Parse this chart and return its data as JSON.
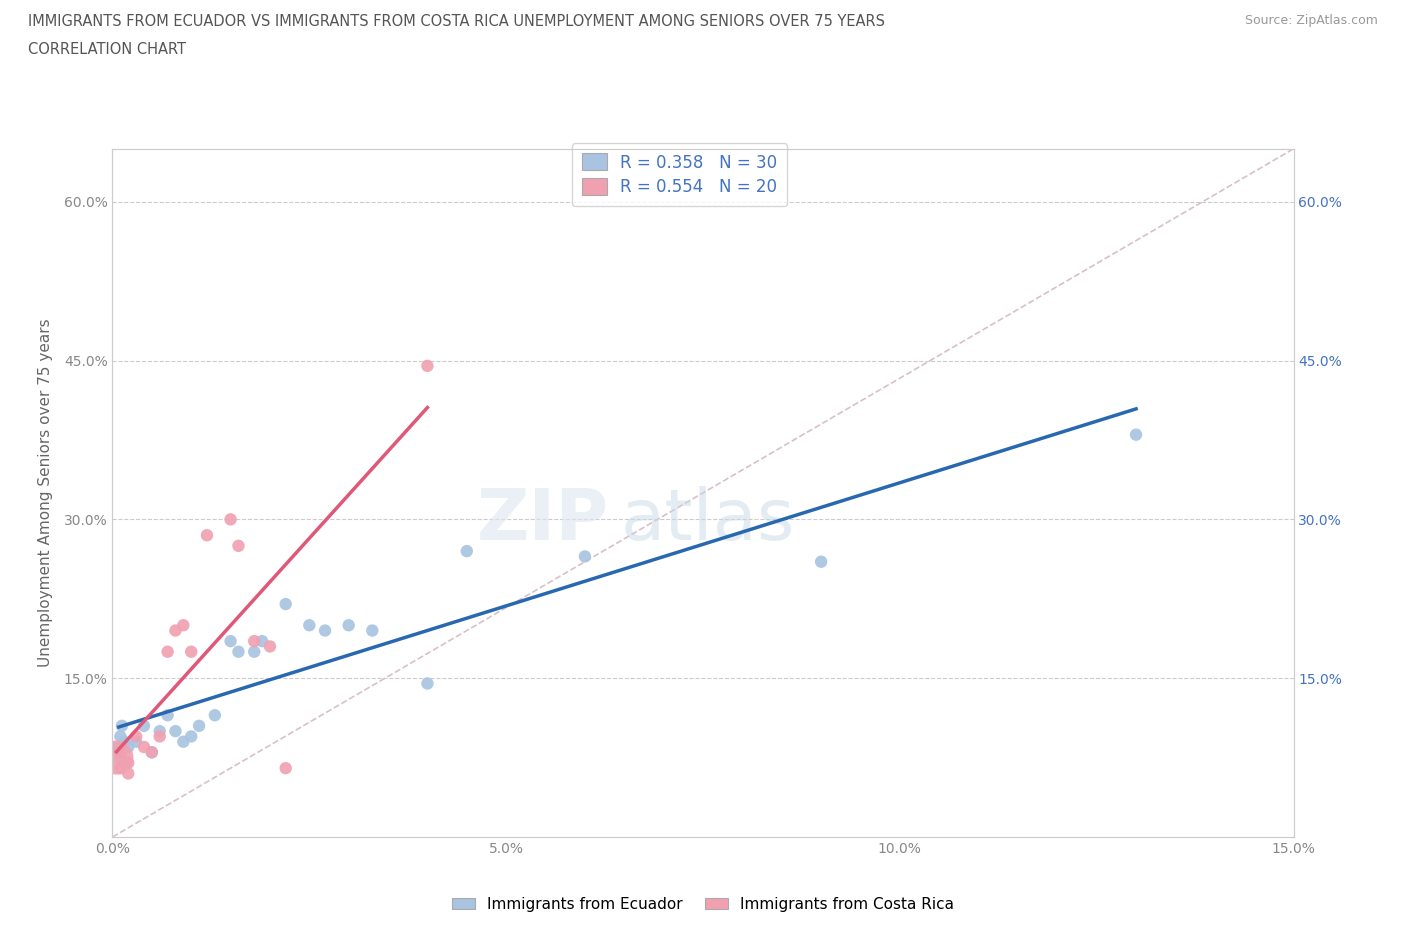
{
  "title_line1": "IMMIGRANTS FROM ECUADOR VS IMMIGRANTS FROM COSTA RICA UNEMPLOYMENT AMONG SENIORS OVER 75 YEARS",
  "title_line2": "CORRELATION CHART",
  "source": "Source: ZipAtlas.com",
  "ylabel": "Unemployment Among Seniors over 75 years",
  "xlim": [
    0,
    0.15
  ],
  "ylim": [
    0,
    0.65
  ],
  "x_ticks": [
    0.0,
    0.05,
    0.1,
    0.15
  ],
  "x_tick_labels": [
    "0.0%",
    "5.0%",
    "10.0%",
    "15.0%"
  ],
  "y_ticks": [
    0,
    0.15,
    0.3,
    0.45,
    0.6
  ],
  "y_tick_labels": [
    "",
    "15.0%",
    "30.0%",
    "45.0%",
    "60.0%"
  ],
  "ecuador_R": 0.358,
  "ecuador_N": 30,
  "costarica_R": 0.554,
  "costarica_N": 20,
  "ecuador_color": "#a8c4e0",
  "costarica_color": "#f0a0b0",
  "ecuador_line_color": "#2868b0",
  "costarica_line_color": "#e05878",
  "diagonal_color": "#d8c0c8",
  "background_color": "#ffffff",
  "title_color": "#555555",
  "axis_label_color": "#666666",
  "tick_color": "#888888",
  "ecuador_x": [
    0.0008,
    0.001,
    0.001,
    0.0012,
    0.0015,
    0.002,
    0.003,
    0.004,
    0.005,
    0.006,
    0.007,
    0.008,
    0.009,
    0.01,
    0.011,
    0.013,
    0.015,
    0.016,
    0.018,
    0.019,
    0.022,
    0.025,
    0.027,
    0.03,
    0.033,
    0.04,
    0.045,
    0.06,
    0.09,
    0.13
  ],
  "ecuador_y": [
    0.085,
    0.095,
    0.075,
    0.105,
    0.09,
    0.085,
    0.09,
    0.105,
    0.08,
    0.1,
    0.115,
    0.1,
    0.09,
    0.095,
    0.105,
    0.115,
    0.185,
    0.175,
    0.175,
    0.185,
    0.22,
    0.2,
    0.195,
    0.2,
    0.195,
    0.145,
    0.27,
    0.265,
    0.26,
    0.38
  ],
  "ecuador_sizes": [
    80,
    80,
    80,
    80,
    80,
    80,
    80,
    80,
    80,
    80,
    80,
    80,
    80,
    80,
    80,
    80,
    80,
    80,
    80,
    80,
    80,
    80,
    80,
    80,
    80,
    80,
    80,
    80,
    80,
    80
  ],
  "costarica_x": [
    0.0005,
    0.001,
    0.001,
    0.002,
    0.002,
    0.003,
    0.004,
    0.005,
    0.006,
    0.007,
    0.008,
    0.009,
    0.01,
    0.012,
    0.015,
    0.016,
    0.018,
    0.02,
    0.022,
    0.04
  ],
  "costarica_y": [
    0.075,
    0.065,
    0.08,
    0.07,
    0.06,
    0.095,
    0.085,
    0.08,
    0.095,
    0.175,
    0.195,
    0.2,
    0.175,
    0.285,
    0.3,
    0.275,
    0.185,
    0.18,
    0.065,
    0.445
  ],
  "costarica_sizes": [
    600,
    80,
    80,
    80,
    80,
    80,
    80,
    80,
    80,
    80,
    80,
    80,
    80,
    80,
    80,
    80,
    80,
    80,
    80,
    80
  ],
  "ecuador_large_dot_idx": 6,
  "ecuador_large_dot_size": 600
}
